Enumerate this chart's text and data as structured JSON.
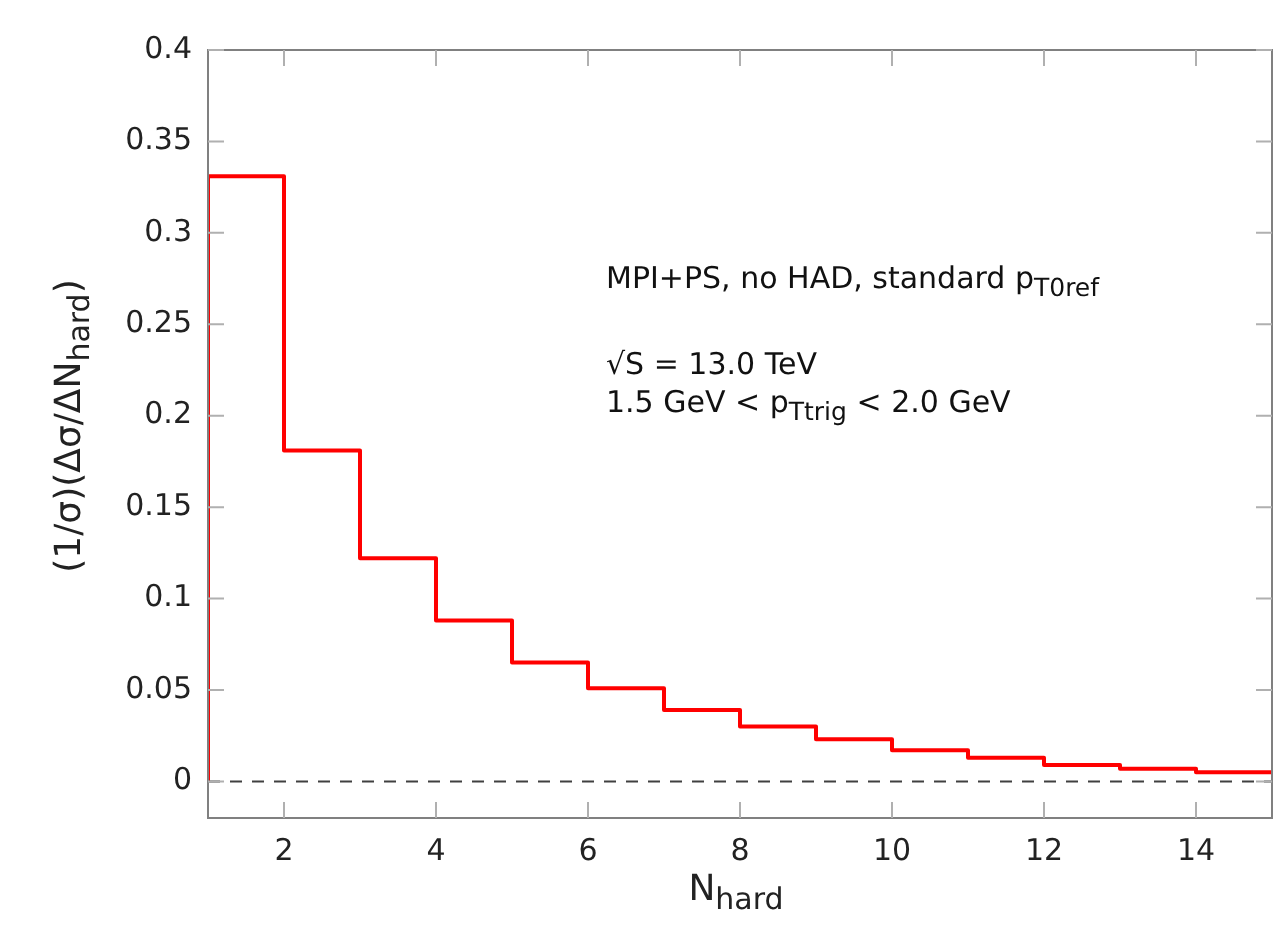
{
  "chart_data": {
    "type": "histogram",
    "xlabel": "N$_{hard}$",
    "ylabel": "(1/σ)(Δσ/ΔN$_{hard}$)",
    "annotations": [
      "MPI+PS, no HAD, standard p$_{T0ref}$",
      "√S = 13.0 TeV",
      "1.5 GeV < p$_{Ttrig}$ < 2.0 GeV"
    ],
    "bins": [
      1,
      2,
      3,
      4,
      5,
      6,
      7,
      8,
      9,
      10,
      11,
      12,
      13,
      14,
      15
    ],
    "values": [
      0.331,
      0.181,
      0.122,
      0.088,
      0.065,
      0.051,
      0.039,
      0.03,
      0.023,
      0.017,
      0.013,
      0.009,
      0.007,
      0.005
    ],
    "color": "#ff0000",
    "xlim": [
      1,
      15
    ],
    "xticks": [
      2,
      4,
      6,
      8,
      10,
      12,
      14
    ],
    "ylim": [
      -0.02,
      0.4
    ],
    "yticks": [
      0,
      0.05,
      0.1,
      0.15,
      0.2,
      0.25,
      0.3,
      0.35,
      0.4
    ],
    "ref_lines": [
      {
        "axis": "y",
        "value": 0,
        "color": "#404040",
        "line_style": "dashed"
      }
    ],
    "grid": false,
    "legend": false
  }
}
